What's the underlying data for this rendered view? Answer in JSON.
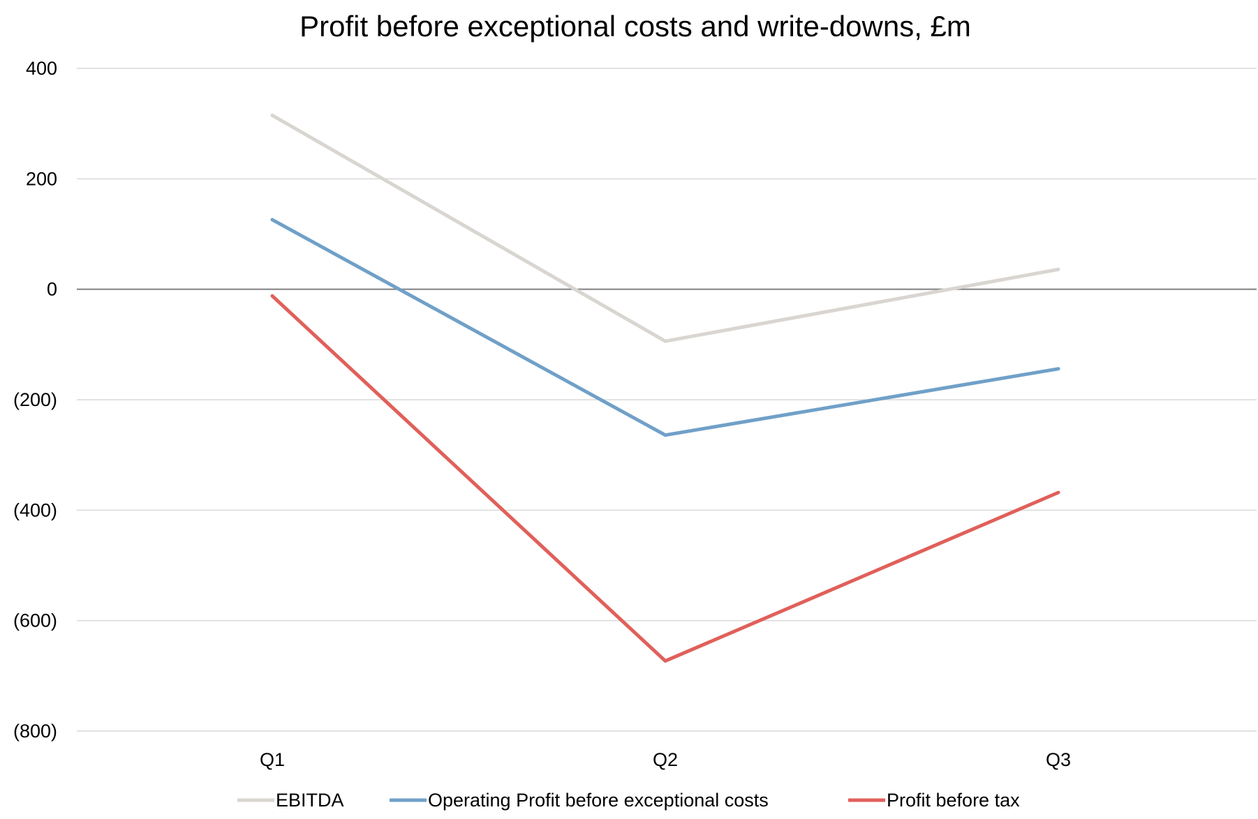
{
  "chart_data": {
    "type": "line",
    "title": "Profit before exceptional costs and write-downs, £m",
    "xlabel": "",
    "ylabel": "",
    "categories": [
      "Q1",
      "Q2",
      "Q3"
    ],
    "ylim": [
      -800,
      400
    ],
    "yticks": [
      400,
      200,
      0,
      -200,
      -400,
      -600,
      -800
    ],
    "ytick_labels": [
      "400",
      "200",
      "0",
      "(200)",
      "(400)",
      "(600)",
      "(800)"
    ],
    "grid": true,
    "legend_position": "bottom",
    "series": [
      {
        "name": "EBITDA",
        "color": "#d9d5d0",
        "values": [
          315,
          -94,
          36
        ]
      },
      {
        "name": "Operating Profit before exceptional costs",
        "color": "#70a0c8",
        "values": [
          126,
          -264,
          -144
        ]
      },
      {
        "name": "Profit before tax",
        "color": "#e0605a",
        "values": [
          -12,
          -673,
          -368
        ]
      }
    ]
  }
}
